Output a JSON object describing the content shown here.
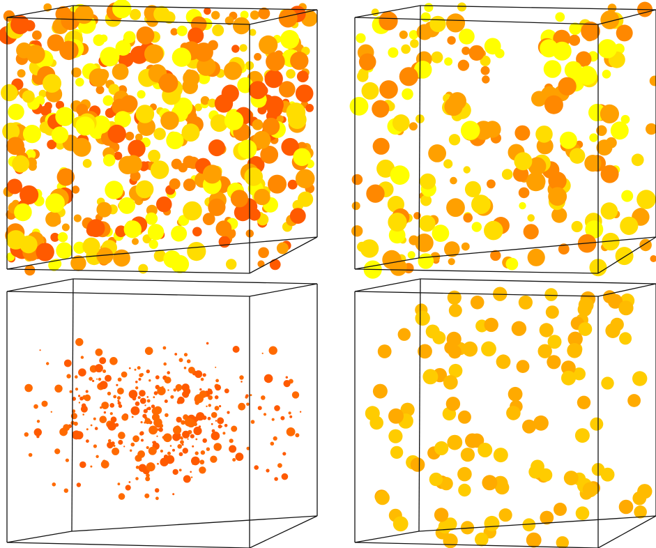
{
  "panels": [
    {
      "id": "top-left",
      "colors": [
        "#ffff00",
        "#ffdd00",
        "#ffa000",
        "#ff8800",
        "#ff5a00"
      ],
      "large_fraction": 0.45
    },
    {
      "id": "top-right",
      "colors": [
        "#ffff00",
        "#ffdd00",
        "#ffa000",
        "#ff8800"
      ],
      "large_fraction": 0.55
    },
    {
      "id": "bottom-left",
      "colors": [
        "#ff5a00",
        "#ff6a00"
      ],
      "large_fraction": 0.3
    },
    {
      "id": "bottom-right",
      "colors": [
        "#ffcc00",
        "#ffbb00",
        "#ffaa00"
      ],
      "large_fraction": 0.9
    }
  ],
  "palette": {
    "frame": "#111111",
    "background": "#ffffff"
  }
}
